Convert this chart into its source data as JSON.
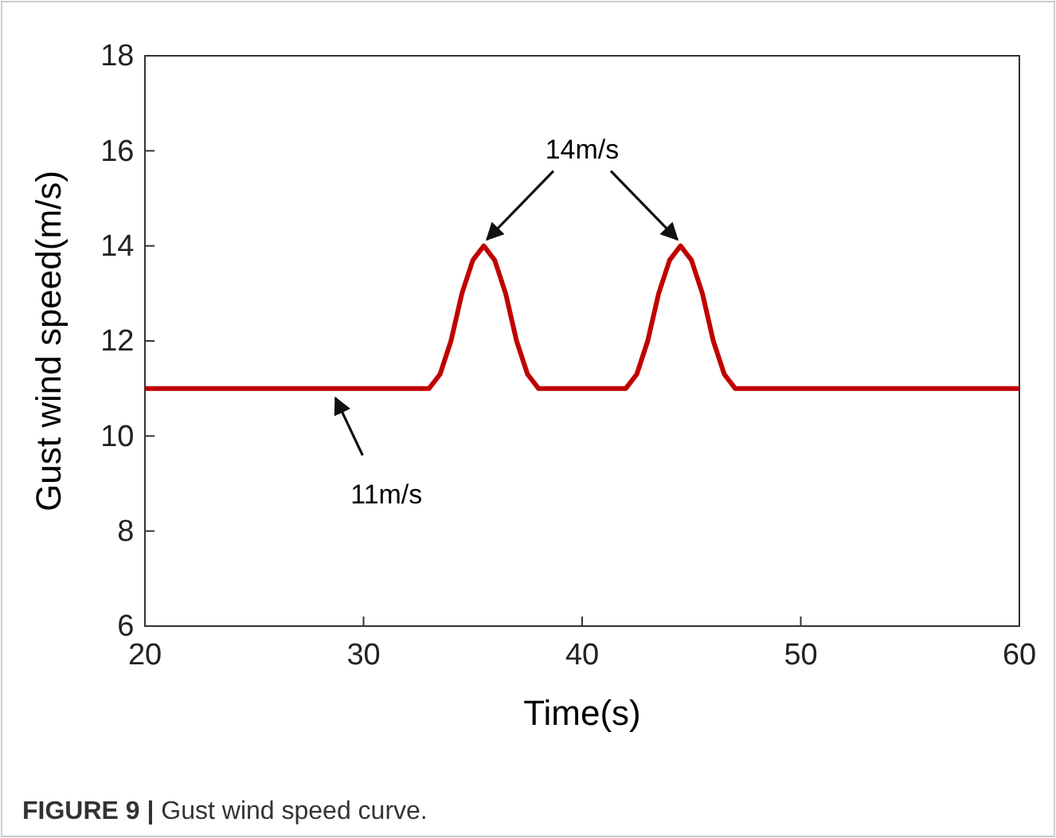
{
  "chart_data": {
    "type": "line",
    "xlabel": "Time(s)",
    "ylabel": "Gust wind speed(m/s)",
    "xlim": [
      20,
      60
    ],
    "xticks": [
      20,
      30,
      40,
      50,
      60
    ],
    "ylim": [
      6,
      18
    ],
    "yticks": [
      6,
      8,
      10,
      12,
      14,
      16,
      18
    ],
    "grid": false,
    "marker": "none",
    "line_style": "solid",
    "series": [
      {
        "color": "#c00000",
        "x": [
          20,
          33,
          33.5,
          34,
          34.5,
          35,
          35.5,
          36,
          36.5,
          37,
          37.5,
          38,
          42,
          42.5,
          43,
          43.5,
          44,
          44.5,
          45,
          45.5,
          46,
          46.5,
          47,
          60
        ],
        "values": [
          11,
          11,
          11.3,
          12.0,
          13.0,
          13.7,
          14,
          13.7,
          13.0,
          12.0,
          11.3,
          11,
          11,
          11.3,
          12.0,
          13.0,
          13.7,
          14,
          13.7,
          13.0,
          12.0,
          11.3,
          11,
          11
        ]
      }
    ],
    "annotations": [
      {
        "text": "14m/s",
        "x": 35.5,
        "y": 14
      },
      {
        "text": "11m/s",
        "x": 28.5,
        "y": 11
      },
      "FIGURE 9 | Gust wind speed curve."
    ]
  }
}
